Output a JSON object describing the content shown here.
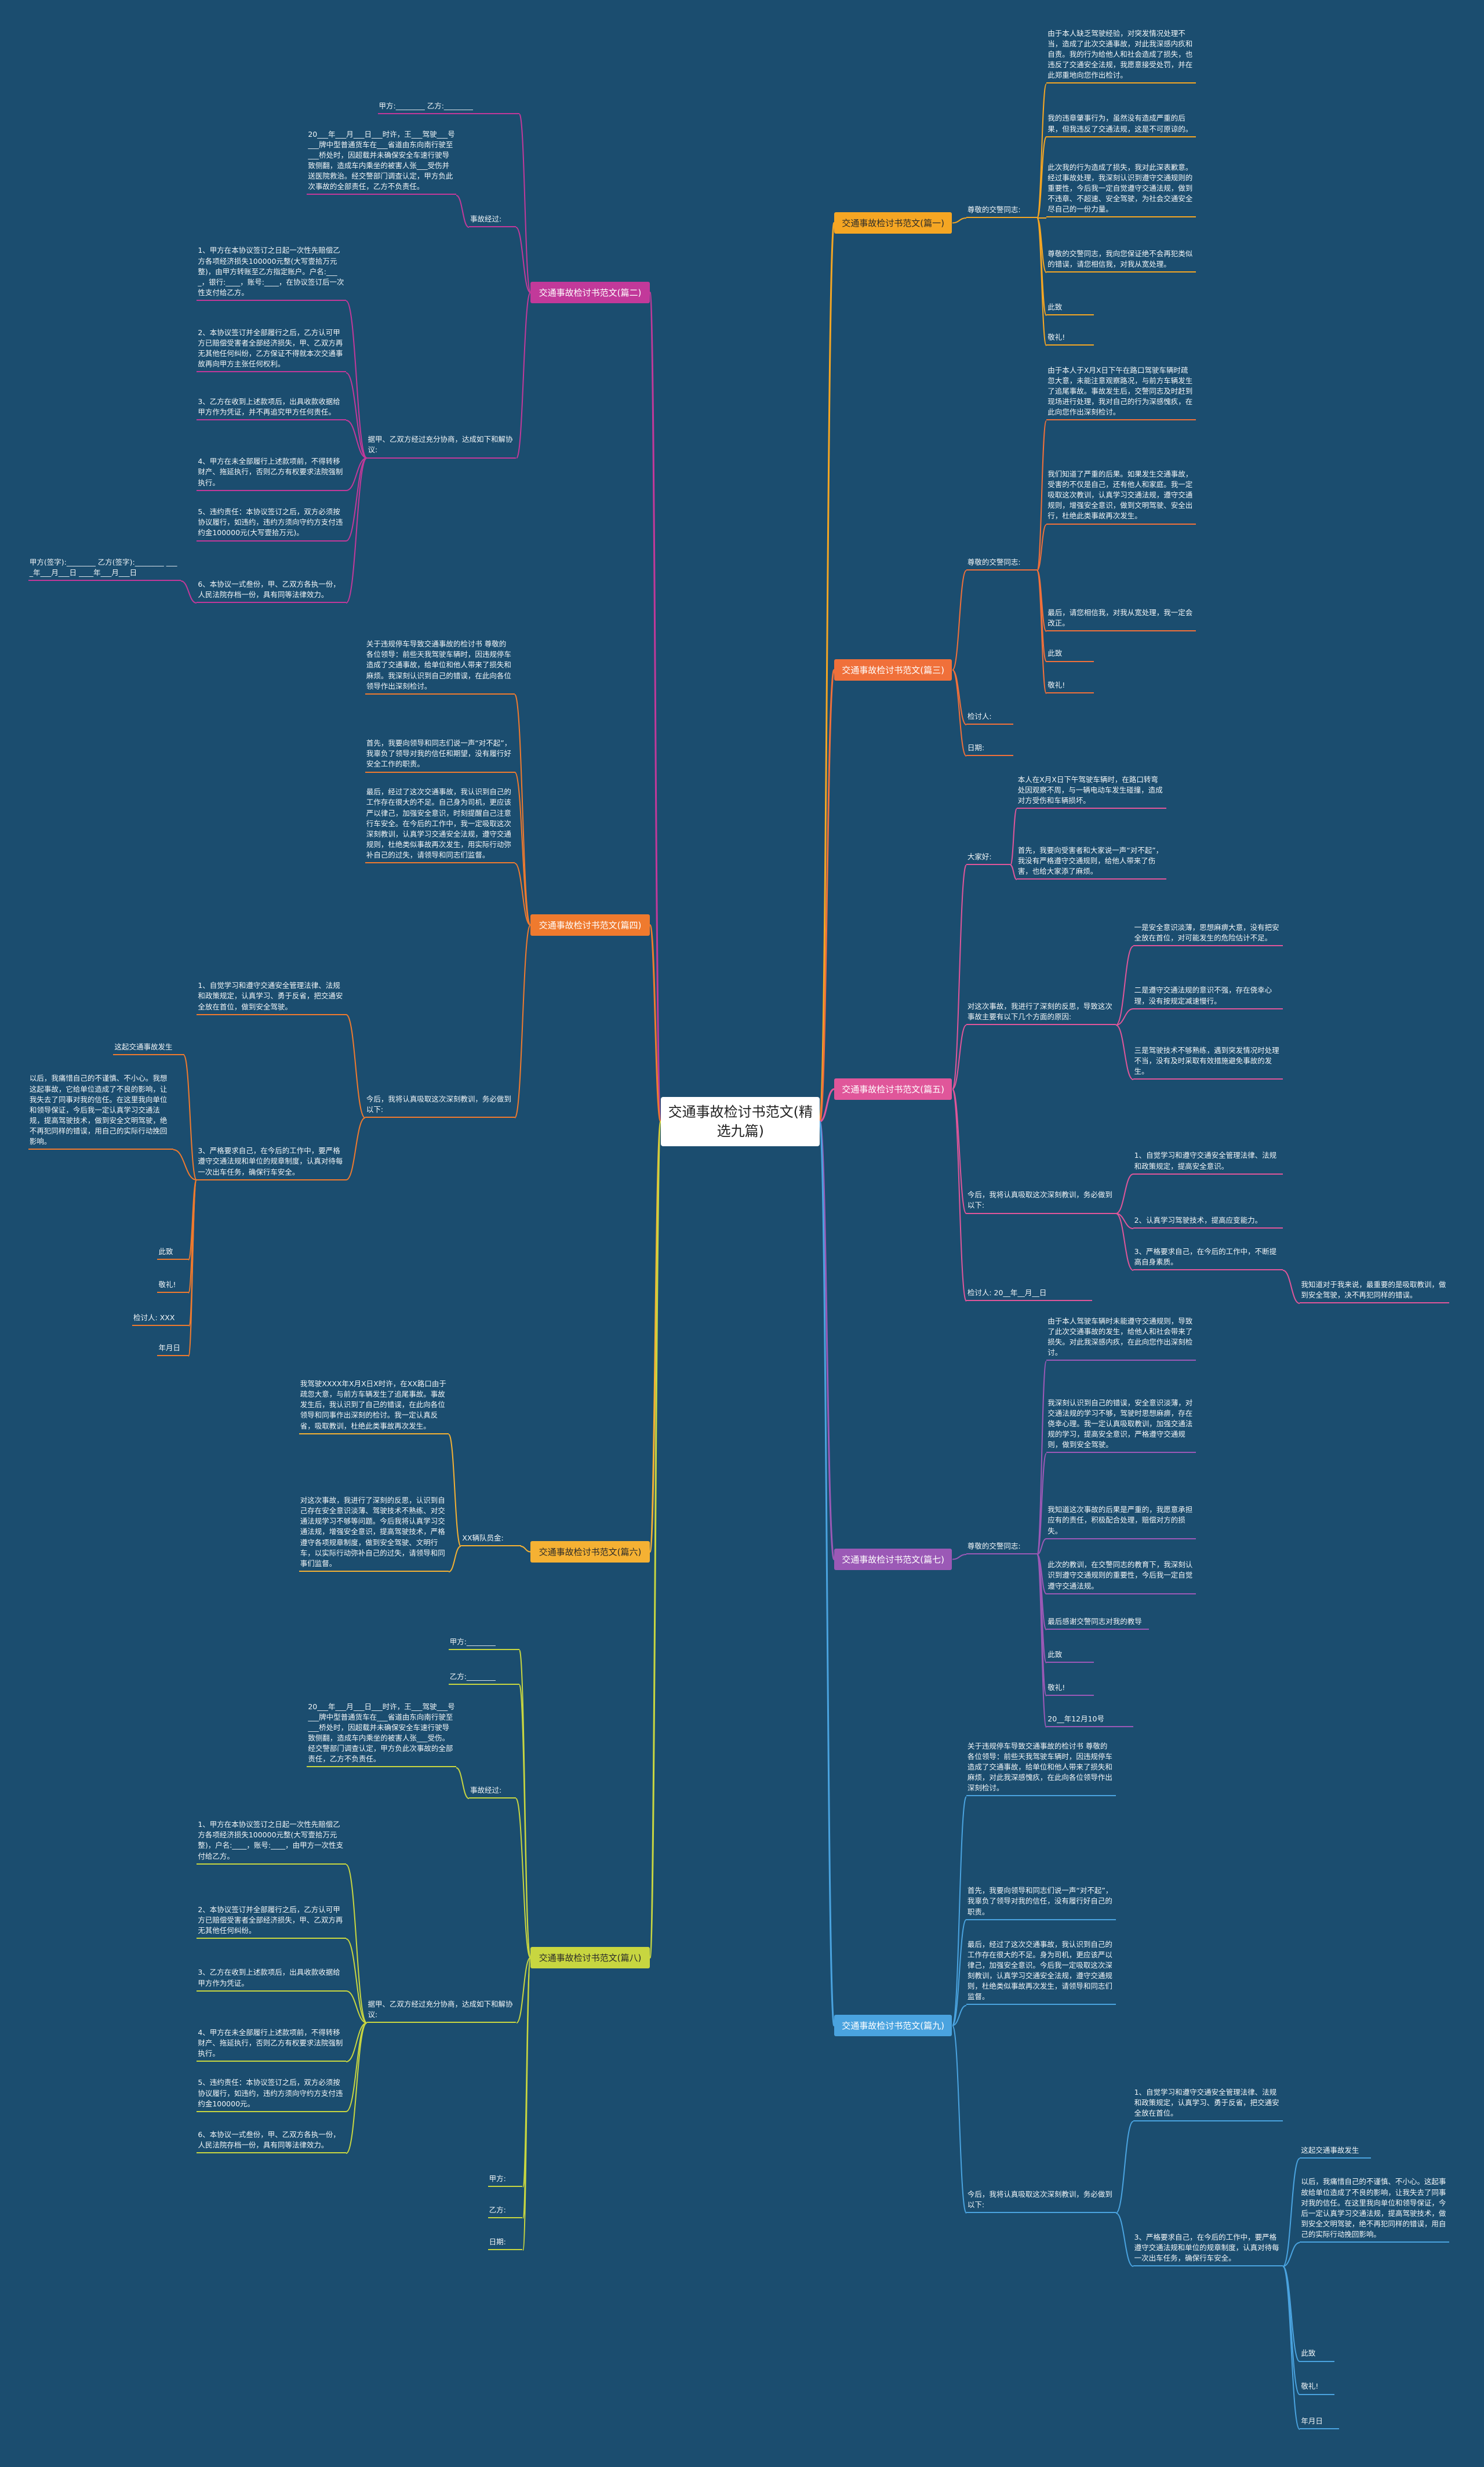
{
  "title": "交通事故检讨书范文(精选九篇)",
  "branches": [
    {
      "label": "交通事故检讨书范文(篇一)",
      "color": "#f5a623",
      "children": [
        {
          "label": "尊敬的交警同志:",
          "children": [
            {
              "label": "由于本人缺乏驾驶经验，对突发情况处理不当，造成了此次交通事故，对此我深感内疚和自责。我的行为给他人和社会造成了损失，也违反了交通安全法规，我愿意接受处罚，并在此郑重地向您作出检讨。"
            },
            {
              "label": "我的违章肇事行为，虽然没有造成严重的后果，但我违反了交通法规，这是不可原谅的。"
            },
            {
              "label": "此次我的行为造成了损失，我对此深表歉意。经过事故处理，我深刻认识到遵守交通规则的重要性，今后我一定自觉遵守交通法规，做到不违章、不超速、安全驾驶，为社会交通安全尽自己的一份力量。"
            },
            {
              "label": "尊敬的交警同志，我向您保证绝不会再犯类似的错误，请您相信我，对我从宽处理。"
            },
            {
              "label": "此致"
            },
            {
              "label": "敬礼!"
            }
          ]
        }
      ]
    },
    {
      "label": "交通事故检讨书范文(篇二)",
      "color": "#c2399a",
      "children": [
        {
          "label": "甲方:________ 乙方:________"
        },
        {
          "label": "事故经过:",
          "children": [
            {
              "label": "20___年___月___日___时许，王___驾驶___号___牌中型普通货车在___省道由东向南行驶至___桥处时，因超载并未确保安全车速行驶导致侧翻，造成车内乘坐的被害人张___受伤并送医院救治。经交警部门调查认定，甲方负此次事故的全部责任，乙方不负责任。"
            }
          ]
        },
        {
          "label": "据甲、乙双方经过充分协商，达成如下和解协议:",
          "children": [
            {
              "label": "1、甲方在本协议签订之日起一次性先赔偿乙方各项经济损失100000元整(大写壹拾万元整)，由甲方转账至乙方指定账户。户名:____，银行:____，账号:____，在协议签订后一次性支付给乙方。"
            },
            {
              "label": "2、本协议签订并全部履行之后，乙方认可甲方已赔偿受害者全部经济损失，甲、乙双方再无其他任何纠纷，乙方保证不得就本次交通事故再向甲方主张任何权利。"
            },
            {
              "label": "3、乙方在收到上述款项后，出具收款收据给甲方作为凭证，并不再追究甲方任何责任。"
            },
            {
              "label": "4、甲方在未全部履行上述款项前，不得转移财产、拖延执行，否则乙方有权要求法院强制执行。"
            },
            {
              "label": "5、违约责任：本协议签订之后，双方必须按协议履行，如违约，违约方须向守约方支付违约金100000元(大写壹拾万元)。"
            },
            {
              "label": "6、本协议一式叁份，甲、乙双方各执一份，人民法院存档一份，具有同等法律效力。",
              "children": [
                {
                  "label": "甲方(签字):________ 乙方(签字):________ ____年___月___日 ____年___月___日"
                }
              ]
            }
          ]
        }
      ]
    },
    {
      "label": "交通事故检讨书范文(篇三)",
      "color": "#f0703a",
      "children": [
        {
          "label": "尊敬的交警同志:",
          "children": [
            {
              "label": "由于本人于X月X日下午在路口驾驶车辆时疏忽大意，未能注意观察路况，与前方车辆发生了追尾事故。事故发生后，交警同志及时赶到现场进行处理，我对自己的行为深感愧疚，在此向您作出深刻检讨。"
            },
            {
              "label": "我们知道了严重的后果。如果发生交通事故，受害的不仅是自己，还有他人和家庭。我一定吸取这次教训，认真学习交通法规，遵守交通规则，增强安全意识，做到文明驾驶、安全出行，杜绝此类事故再次发生。"
            },
            {
              "label": "最后，请您相信我，对我从宽处理，我一定会改正。"
            },
            {
              "label": "此致"
            },
            {
              "label": "敬礼!"
            }
          ]
        },
        {
          "label": "检讨人:"
        },
        {
          "label": "日期:"
        }
      ]
    },
    {
      "label": "交通事故检讨书范文(篇四)",
      "color": "#ef7a2e",
      "children": [
        {
          "label": "关于违规停车导致交通事故的检讨书 尊敬的各位领导：前些天我驾驶车辆时，因违规停车造成了交通事故，给单位和他人带来了损失和麻烦。我深刻认识到自己的错误，在此向各位领导作出深刻检讨。"
        },
        {
          "label": "首先，我要向领导和同志们说一声“对不起”，我辜负了领导对我的信任和期望，没有履行好安全工作的职责。"
        },
        {
          "label": "最后，经过了这次交通事故，我认识到自己的工作存在很大的不足。自己身为司机，更应该严以律己，加强安全意识，时刻提醒自己注意行车安全。在今后的工作中，我一定吸取这次深刻教训，认真学习交通安全法规，遵守交通规则，杜绝类似事故再次发生，用实际行动弥补自己的过失，请领导和同志们监督。"
        },
        {
          "label": "今后，我将认真吸取这次深刻教训，务必做到以下:",
          "children": [
            {
              "label": "1、自觉学习和遵守交通安全管理法律、法规和政策规定，认真学习、勇于反省，把交通安全放在首位，做到安全驾驶。"
            },
            {
              "label": "3、严格要求自己，在今后的工作中，要严格遵守交通法规和单位的规章制度，认真对待每一次出车任务，确保行车安全。",
              "children": [
                {
                  "label": "这起交通事故发生"
                },
                {
                  "label": "以后，我痛惜自己的不谨慎、不小心。我想这起事故，它给单位造成了不良的影响，让我失去了同事对我的信任。在这里我向单位和领导保证，今后我一定认真学习交通法规，提高驾驶技术，做到安全文明驾驶，绝不再犯同样的错误，用自己的实际行动挽回影响。"
                },
                {
                  "label": "此致"
                },
                {
                  "label": "敬礼!"
                },
                {
                  "label": "检讨人: XXX"
                },
                {
                  "label": "年月日"
                }
              ]
            }
          ]
        }
      ]
    },
    {
      "label": "交通事故检讨书范文(篇五)",
      "color": "#e0569a",
      "children": [
        {
          "label": "大家好:",
          "children": [
            {
              "label": "本人在X月X日下午驾驶车辆时，在路口转弯处因观察不周，与一辆电动车发生碰撞，造成对方受伤和车辆损坏。"
            },
            {
              "label": "首先，我要向受害者和大家说一声“对不起”，我没有严格遵守交通规则，给他人带来了伤害，也给大家添了麻烦。"
            }
          ]
        },
        {
          "label": "对这次事故，我进行了深刻的反思，导致这次事故主要有以下几个方面的原因:",
          "children": [
            {
              "label": "一是安全意识淡薄，思想麻痹大意，没有把安全放在首位，对可能发生的危险估计不足。"
            },
            {
              "label": "二是遵守交通法规的意识不强，存在侥幸心理，没有按规定减速慢行。"
            },
            {
              "label": "三是驾驶技术不够熟练，遇到突发情况时处理不当，没有及时采取有效措施避免事故的发生。"
            }
          ]
        },
        {
          "label": "今后，我将认真吸取这次深刻教训，务必做到以下:",
          "children": [
            {
              "label": "1、自觉学习和遵守交通安全管理法律、法规和政策规定，提高安全意识。"
            },
            {
              "label": "2、认真学习驾驶技术，提高应变能力。"
            },
            {
              "label": "3、严格要求自己，在今后的工作中，不断提高自身素质。",
              "children": [
                {
                  "label": "我知道对于我来说，最重要的是吸取教训，做到安全驾驶，决不再犯同样的错误。"
                }
              ]
            }
          ]
        },
        {
          "label": "检讨人: 20__年__月__日"
        }
      ]
    },
    {
      "label": "交通事故检讨书范文(篇六)",
      "color": "#f5b133",
      "children": [
        {
          "label": "XX辆队员金:",
          "children": [
            {
              "label": "我驾驶XXXX年X月X日X时许，在XX路口由于疏忽大意，与前方车辆发生了追尾事故。事故发生后，我认识到了自己的错误，在此向各位领导和同事作出深刻的检讨。我一定认真反省，吸取教训，杜绝此类事故再次发生。"
            },
            {
              "label": "对这次事故，我进行了深刻的反思，认识到自己存在安全意识淡薄、驾驶技术不熟练、对交通法规学习不够等问题。今后我将认真学习交通法规，增强安全意识，提高驾驶技术，严格遵守各项规章制度，做到安全驾驶、文明行车，以实际行动弥补自己的过失，请领导和同事们监督。"
            }
          ]
        }
      ]
    },
    {
      "label": "交通事故检讨书范文(篇七)",
      "color": "#9b59b6",
      "children": [
        {
          "label": "尊敬的交警同志:",
          "children": [
            {
              "label": "由于本人驾驶车辆时未能遵守交通规则，导致了此次交通事故的发生，给他人和社会带来了损失。对此我深感内疚，在此向您作出深刻检讨。"
            },
            {
              "label": "我深刻认识到自己的错误，安全意识淡薄，对交通法规的学习不够，驾驶时思想麻痹，存在侥幸心理。我一定认真吸取教训，加强交通法规的学习，提高安全意识，严格遵守交通规则，做到安全驾驶。"
            },
            {
              "label": "我知道这次事故的后果是严重的，我愿意承担应有的责任，积极配合处理，赔偿对方的损失。"
            },
            {
              "label": "此次的教训，在交警同志的教育下，我深刻认识到遵守交通规则的重要性，今后我一定自觉遵守交通法规。"
            },
            {
              "label": "最后感谢交警同志对我的教导"
            },
            {
              "label": "此致"
            },
            {
              "label": "敬礼!"
            },
            {
              "label": "20__年12月10号"
            }
          ]
        }
      ]
    },
    {
      "label": "交通事故检讨书范文(篇八)",
      "color": "#c8d640",
      "children": [
        {
          "label": "甲方:________"
        },
        {
          "label": "乙方:________"
        },
        {
          "label": "事故经过:",
          "children": [
            {
              "label": "20___年___月___日___时许，王___驾驶___号___牌中型普通货车在___省道由东向南行驶至___桥处时，因超载并未确保安全车速行驶导致侧翻，造成车内乘坐的被害人张___受伤。经交警部门调查认定，甲方负此次事故的全部责任，乙方不负责任。"
            }
          ]
        },
        {
          "label": "据甲、乙双方经过充分协商，达成如下和解协议:",
          "children": [
            {
              "label": "1、甲方在本协议签订之日起一次性先赔偿乙方各项经济损失100000元整(大写壹拾万元整)，户名:____，账号:____，由甲方一次性支付给乙方。"
            },
            {
              "label": "2、本协议签订并全部履行之后，乙方认可甲方已赔偿受害者全部经济损失，甲、乙双方再无其他任何纠纷。"
            },
            {
              "label": "3、乙方在收到上述款项后，出具收款收据给甲方作为凭证。"
            },
            {
              "label": "4、甲方在未全部履行上述款项前，不得转移财产、拖延执行，否则乙方有权要求法院强制执行。"
            },
            {
              "label": "5、违约责任：本协议签订之后，双方必须按协议履行，如违约，违约方须向守约方支付违约金100000元。"
            },
            {
              "label": "6、本协议一式叁份，甲、乙双方各执一份，人民法院存档一份，具有同等法律效力。"
            }
          ]
        },
        {
          "label": "甲方:"
        },
        {
          "label": "乙方:"
        },
        {
          "label": "日期:"
        }
      ]
    },
    {
      "label": "交通事故检讨书范文(篇九)",
      "color": "#4aa3df",
      "children": [
        {
          "label": "关于违规停车导致交通事故的检讨书 尊敬的各位领导：前些天我驾驶车辆时，因违规停车造成了交通事故，给单位和他人带来了损失和麻烦，对此我深感愧疚，在此向各位领导作出深刻检讨。"
        },
        {
          "label": "首先，我要向领导和同志们说一声“对不起”，我辜负了领导对我的信任，没有履行好自己的职责。"
        },
        {
          "label": "最后，经过了这次交通事故，我认识到自己的工作存在很大的不足。身为司机，更应该严以律己，加强安全意识。今后我一定吸取这次深刻教训，认真学习交通安全法规，遵守交通规则，杜绝类似事故再次发生，请领导和同志们监督。"
        },
        {
          "label": "今后，我将认真吸取这次深刻教训，务必做到以下:",
          "children": [
            {
              "label": "1、自觉学习和遵守交通安全管理法律、法规和政策规定，认真学习、勇于反省，把交通安全放在首位。"
            },
            {
              "label": "3、严格要求自己，在今后的工作中，要严格遵守交通法规和单位的规章制度，认真对待每一次出车任务，确保行车安全。",
              "children": [
                {
                  "label": "这起交通事故发生"
                },
                {
                  "label": "以后，我痛惜自己的不谨慎、不小心。这起事故给单位造成了不良的影响，让我失去了同事对我的信任。在这里我向单位和领导保证，今后一定认真学习交通法规，提高驾驶技术，做到安全文明驾驶，绝不再犯同样的错误，用自己的实际行动挽回影响。"
                },
                {
                  "label": "此致"
                },
                {
                  "label": "敬礼!"
                },
                {
                  "label": "年月日"
                }
              ]
            }
          ]
        }
      ]
    }
  ]
}
